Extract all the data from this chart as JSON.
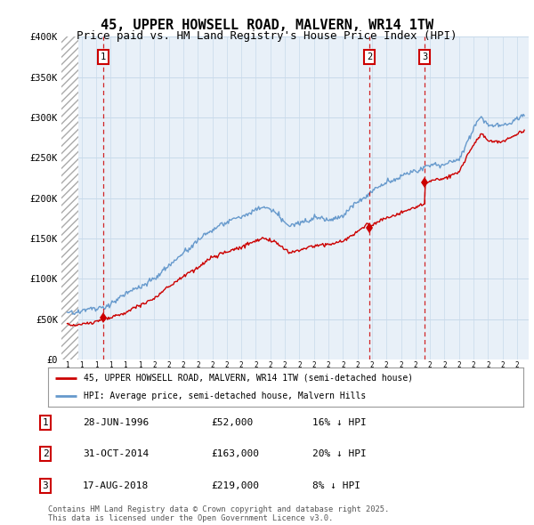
{
  "title": "45, UPPER HOWSELL ROAD, MALVERN, WR14 1TW",
  "subtitle": "Price paid vs. HM Land Registry's House Price Index (HPI)",
  "ylabel_ticks": [
    "£0",
    "£50K",
    "£100K",
    "£150K",
    "£200K",
    "£250K",
    "£300K",
    "£350K",
    "£400K"
  ],
  "ytick_vals": [
    0,
    50000,
    100000,
    150000,
    200000,
    250000,
    300000,
    350000,
    400000
  ],
  "ylim": [
    0,
    400000
  ],
  "xlim_start": 1993.6,
  "xlim_end": 2025.8,
  "hatch_end": 1994.75,
  "sale_dates": [
    1996.49,
    2014.83,
    2018.63
  ],
  "sale_prices": [
    52000,
    163000,
    219000
  ],
  "sale_labels": [
    "1",
    "2",
    "3"
  ],
  "legend_entries": [
    "45, UPPER HOWSELL ROAD, MALVERN, WR14 1TW (semi-detached house)",
    "HPI: Average price, semi-detached house, Malvern Hills"
  ],
  "table_rows": [
    {
      "num": "1",
      "date": "28-JUN-1996",
      "price": "£52,000",
      "note": "16% ↓ HPI"
    },
    {
      "num": "2",
      "date": "31-OCT-2014",
      "price": "£163,000",
      "note": "20% ↓ HPI"
    },
    {
      "num": "3",
      "date": "17-AUG-2018",
      "price": "£219,000",
      "note": "8% ↓ HPI"
    }
  ],
  "footnote": "Contains HM Land Registry data © Crown copyright and database right 2025.\nThis data is licensed under the Open Government Licence v3.0.",
  "red_line_color": "#cc0000",
  "blue_line_color": "#6699cc",
  "grid_color": "#c8daea",
  "bg_color": "#e8f0f8",
  "title_fontsize": 11,
  "subtitle_fontsize": 9,
  "axis_fontsize": 7.5
}
